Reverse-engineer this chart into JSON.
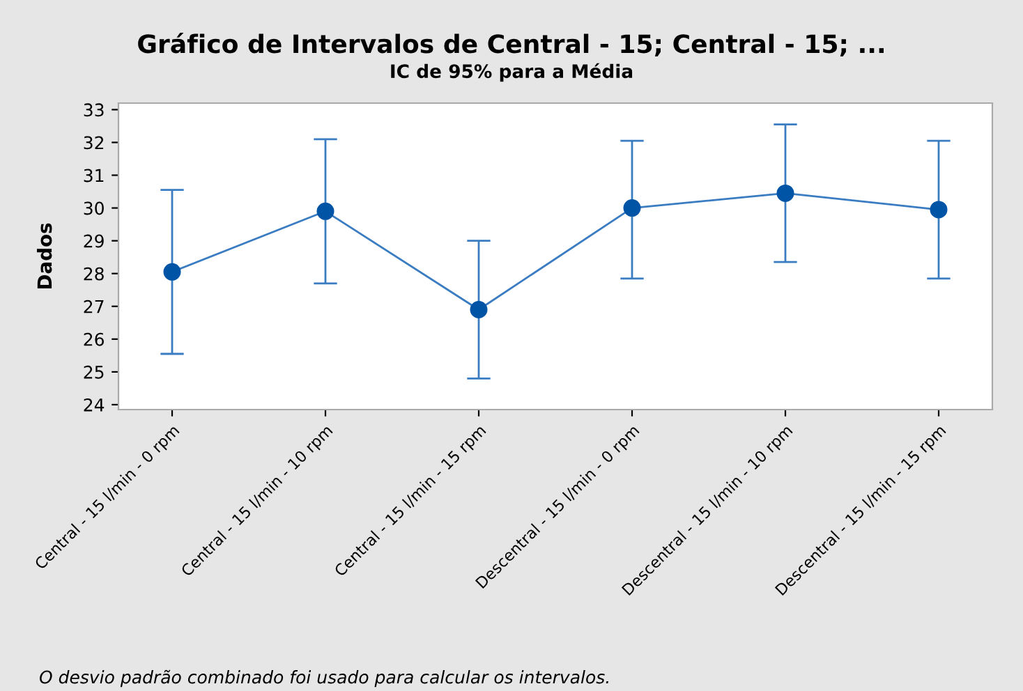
{
  "chart_data": {
    "type": "line",
    "title": "Gráfico de Intervalos de Central - 15; Central - 15; ...",
    "subtitle": "IC de 95% para a Média",
    "ylabel": "Dados",
    "categories": [
      "Central - 15 l/min - 0 rpm",
      "Central - 15 l/min - 10 rpm",
      "Central - 15 l/min - 15 rpm",
      "Descentral - 15 l/min - 0 rpm",
      "Descentral - 15 l/min - 10 rpm",
      "Descentral - 15 l/min - 15 rpm"
    ],
    "series": [
      {
        "color": "#0054a6",
        "values": [
          28.05,
          29.9,
          26.9,
          30.0,
          30.45,
          29.95
        ],
        "errors": [
          [
            25.55,
            30.55
          ],
          [
            27.7,
            32.1
          ],
          [
            24.8,
            29.0
          ],
          [
            27.85,
            32.05
          ],
          [
            28.35,
            32.55
          ],
          [
            27.85,
            32.05
          ]
        ]
      }
    ],
    "ylim": [
      23.85,
      33.2
    ],
    "yticks": [
      24,
      25,
      26,
      27,
      28,
      29,
      30,
      31,
      32,
      33
    ],
    "grid": false,
    "marker": "circle",
    "line_style": "solid",
    "annotations": [
      "O desvio padrão combinado foi usado para calcular os intervalos."
    ]
  }
}
